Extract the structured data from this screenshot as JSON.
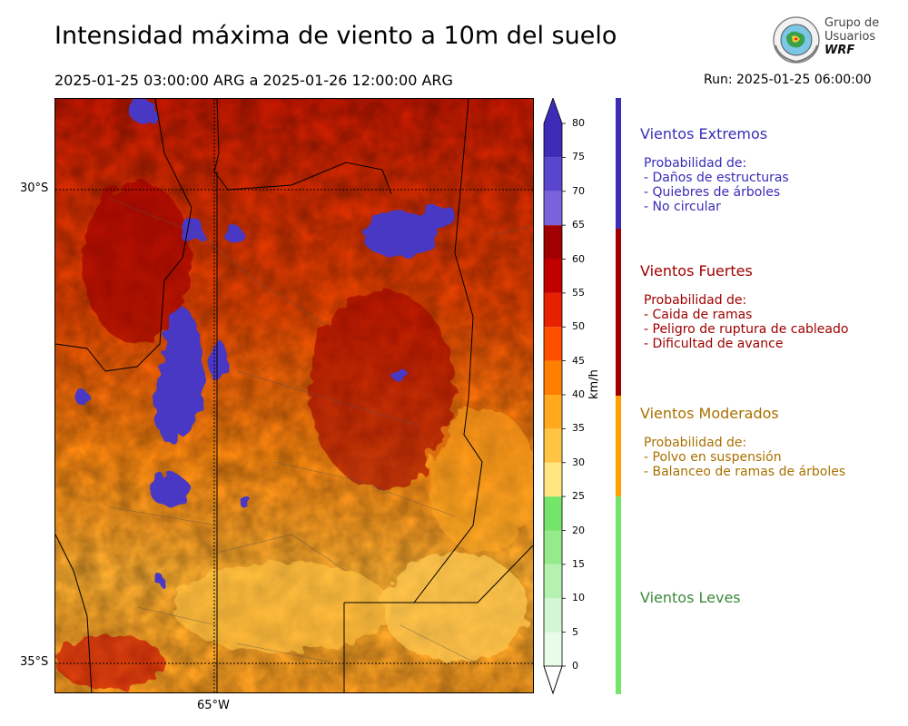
{
  "header": {
    "title": "Intensidad máxima de viento a 10m del suelo",
    "period": "2025-01-25 03:00:00 ARG  a  2025-01-26 12:00:00 ARG",
    "run": "Run: 2025-01-25 06:00:00"
  },
  "logo": {
    "line1": "Grupo de",
    "line2": "Usuarios",
    "line3": "WRF",
    "icon": "globe-seal-icon"
  },
  "map": {
    "lat_labels": [
      "30°S",
      "35°S"
    ],
    "lon_labels": [
      "65°W"
    ],
    "field_description": "wind speed field"
  },
  "colorbar": {
    "unit": "km/h",
    "ticks": [
      "80",
      "75",
      "70",
      "65",
      "60",
      "55",
      "50",
      "45",
      "40",
      "35",
      "30",
      "25",
      "20",
      "15",
      "10",
      "5",
      "0"
    ],
    "bins": [
      {
        "min": 0,
        "max": 5,
        "color": "#e8fce8"
      },
      {
        "min": 5,
        "max": 10,
        "color": "#d2f7d2"
      },
      {
        "min": 10,
        "max": 15,
        "color": "#b5f2b0"
      },
      {
        "min": 15,
        "max": 20,
        "color": "#95ea8c"
      },
      {
        "min": 20,
        "max": 25,
        "color": "#74e46a"
      },
      {
        "min": 25,
        "max": 30,
        "color": "#ffe680"
      },
      {
        "min": 30,
        "max": 35,
        "color": "#ffc444"
      },
      {
        "min": 35,
        "max": 40,
        "color": "#ffaa1e"
      },
      {
        "min": 40,
        "max": 45,
        "color": "#ff7f00"
      },
      {
        "min": 45,
        "max": 50,
        "color": "#ff4e00"
      },
      {
        "min": 50,
        "max": 55,
        "color": "#e62000"
      },
      {
        "min": 55,
        "max": 60,
        "color": "#c30000"
      },
      {
        "min": 60,
        "max": 65,
        "color": "#a00000"
      },
      {
        "min": 65,
        "max": 70,
        "color": "#7a62dc"
      },
      {
        "min": 70,
        "max": 75,
        "color": "#5a46cc"
      },
      {
        "min": 75,
        "max": 80,
        "color": "#3e2cb8"
      }
    ]
  },
  "legend": {
    "extremos": {
      "title": "Vientos Extremos",
      "description": "Probabilidad de:\n- Daños de estructuras\n- Quiebres de árboles\n- No circular",
      "color": "#3a2cb4"
    },
    "fuertes": {
      "title": "Vientos Fuertes",
      "description": "Probabilidad de:\n- Caida de ramas\n- Peligro de ruptura de cableado\n- Dificultad de avance",
      "color": "#a00000"
    },
    "moderados": {
      "title": "Vientos Moderados",
      "description": "Probabilidad de:\n- Polvo en suspensión\n- Balanceo de ramas de árboles",
      "color": "#a87000"
    },
    "leves": {
      "title": "Vientos Leves",
      "description": "",
      "color": "#3a8a3a"
    }
  }
}
